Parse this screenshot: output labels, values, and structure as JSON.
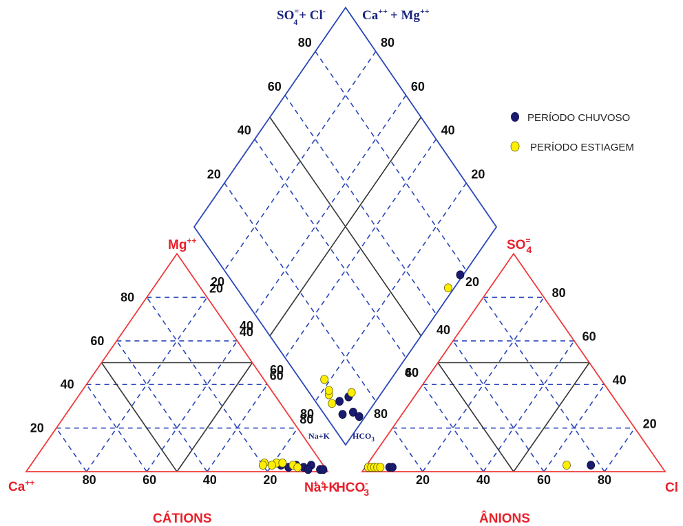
{
  "colors": {
    "cation_triangle": "#f03a3a",
    "anion_triangle": "#f03a3a",
    "diamond": "#2a46b8",
    "grid_dashed": "#2a46b8",
    "grid_solid": "#333333",
    "chuvoso": "#1a1a6e",
    "estiagem": "#ffee00"
  },
  "labels": {
    "cation_top": "Mg",
    "cation_top_sup": "++",
    "cation_left": "Ca",
    "cation_left_sup": "++",
    "cation_right": "Na+K",
    "cation_right_sup": "+  +",
    "anion_top": "SO",
    "anion_top_sup": "=",
    "anion_top_sub": "4",
    "anion_left": "HCO",
    "anion_left_sup": "-",
    "anion_left_sub": "3",
    "anion_right": "Cl",
    "diamond_top_left": "SO",
    "diamond_top_left_sub": "4",
    "diamond_top_left_sup": "=",
    "diamond_top_left_rest": "+ Cl",
    "diamond_top_left_rest_sup": "-",
    "diamond_top_right": "Ca",
    "diamond_top_right_sup": "++",
    "diamond_top_right_rest": "+  Mg",
    "diamond_top_right_rest_sup": "++",
    "diamond_bottom_left": "Na+K",
    "diamond_bottom_right": "HCO",
    "diamond_bottom_right_sub": "3",
    "cations_title": "CÁTIONS",
    "anions_title": "ÂNIONS"
  },
  "legend": {
    "chuvoso": "PERÍODO CHUVOSO",
    "estiagem": "PERÍODO ESTIAGEM"
  },
  "ticks": {
    "cation_left": [
      "20",
      "40",
      "60",
      "80"
    ],
    "cation_bottom": [
      "80",
      "60",
      "40",
      "20"
    ],
    "cation_right": [
      "20",
      "40",
      "60",
      "80"
    ],
    "anion_bottom": [
      "20",
      "40",
      "60",
      "80"
    ],
    "anion_left": [
      "60",
      "80"
    ],
    "anion_right": [
      "20",
      "40",
      "60",
      "80"
    ],
    "diamond_left": [
      "20",
      "40",
      "60",
      "80"
    ],
    "diamond_right": [
      "20",
      "40",
      "60",
      "80"
    ]
  },
  "chart_data": {
    "type": "scatter",
    "title": "",
    "series": [
      {
        "name": "PERÍODO CHUVOSO",
        "cations": [
          {
            "ca": 4,
            "mg": 3
          },
          {
            "ca": 7,
            "mg": 2
          },
          {
            "ca": 9,
            "mg": 3
          },
          {
            "ca": 12,
            "mg": 2
          },
          {
            "ca": 14,
            "mg": 3
          },
          {
            "ca": 2,
            "mg": 1
          },
          {
            "ca": 6,
            "mg": 1
          },
          {
            "ca": 1,
            "mg": 1
          }
        ],
        "anions": [
          {
            "so4": 2,
            "cl": 1
          },
          {
            "so4": 2,
            "cl": 2
          },
          {
            "so4": 2,
            "cl": 3
          },
          {
            "so4": 2,
            "cl": 8
          },
          {
            "so4": 2,
            "cl": 9
          },
          {
            "so4": 3,
            "cl": 74
          }
        ],
        "diamond": [
          {
            "so4cl": 77,
            "camg": 1
          },
          {
            "so4cl": 8,
            "camg": 12
          },
          {
            "so4cl": 6,
            "camg": 8
          },
          {
            "so4cl": 12,
            "camg": 10
          },
          {
            "so4cl": 10,
            "camg": 5
          },
          {
            "so4cl": 11,
            "camg": 2
          }
        ]
      },
      {
        "name": "PERÍODO ESTIAGEM",
        "cations": [
          {
            "ca": 15,
            "mg": 4
          },
          {
            "ca": 17,
            "mg": 3
          },
          {
            "ca": 13,
            "mg": 4
          },
          {
            "ca": 19,
            "mg": 4
          },
          {
            "ca": 20,
            "mg": 3
          },
          {
            "ca": 10,
            "mg": 3
          },
          {
            "ca": 9,
            "mg": 2
          }
        ],
        "anions": [
          {
            "so4": 2,
            "cl": 1
          },
          {
            "so4": 2,
            "cl": 2
          },
          {
            "so4": 2,
            "cl": 3
          },
          {
            "so4": 2,
            "cl": 4
          },
          {
            "so4": 2,
            "cl": 5
          },
          {
            "so4": 3,
            "cl": 66
          }
        ],
        "diamond": [
          {
            "so4cl": 70,
            "camg": 2
          },
          {
            "so4cl": 6,
            "camg": 17
          },
          {
            "so4cl": 7,
            "camg": 18
          },
          {
            "so4cl": 14,
            "camg": 10
          },
          {
            "so4cl": 5,
            "camg": 14
          },
          {
            "so4cl": 8,
            "camg": 22
          }
        ]
      }
    ]
  }
}
